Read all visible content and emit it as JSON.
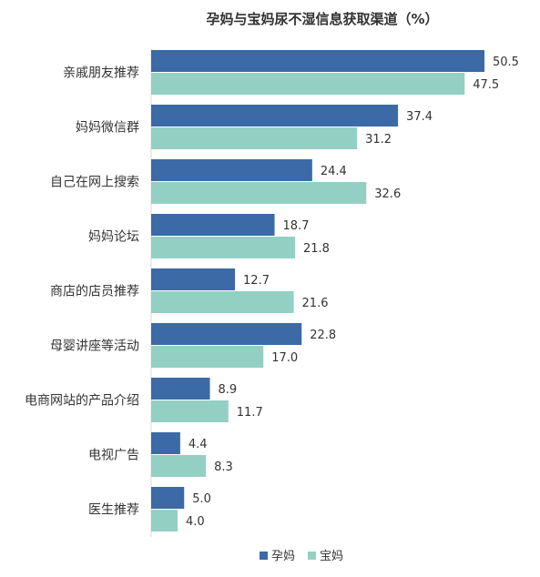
{
  "chart_data": {
    "type": "bar",
    "orientation": "horizontal",
    "title": "孕妈与宝妈尿不湿信息获取渠道（%）",
    "categories": [
      "亲戚朋友推荐",
      "妈妈微信群",
      "自己在网上搜索",
      "妈妈论坛",
      "商店的店员推荐",
      "母婴讲座等活动",
      "电商网站的产品介绍",
      "电视广告",
      "医生推荐"
    ],
    "series": [
      {
        "name": "孕妈",
        "color": "#3b6aa6",
        "values": [
          50.5,
          37.4,
          24.4,
          18.7,
          12.7,
          22.8,
          8.9,
          4.4,
          5.0
        ],
        "labels": [
          "50.5",
          "37.4",
          "24.4",
          "18.7",
          "12.7",
          "22.8",
          "8.9",
          "4.4",
          "5.0"
        ]
      },
      {
        "name": "宝妈",
        "color": "#93d0c3",
        "values": [
          47.5,
          31.2,
          32.6,
          21.8,
          21.6,
          17.0,
          11.7,
          8.3,
          4.0
        ],
        "labels": [
          "47.5",
          "31.2",
          "32.6",
          "21.8",
          "21.6",
          "17.0",
          "11.7",
          "8.3",
          "4.0"
        ]
      }
    ],
    "xlim": [
      0,
      50.5
    ],
    "grid": false,
    "legend_position": "bottom-right",
    "xlabel": "",
    "ylabel": ""
  }
}
